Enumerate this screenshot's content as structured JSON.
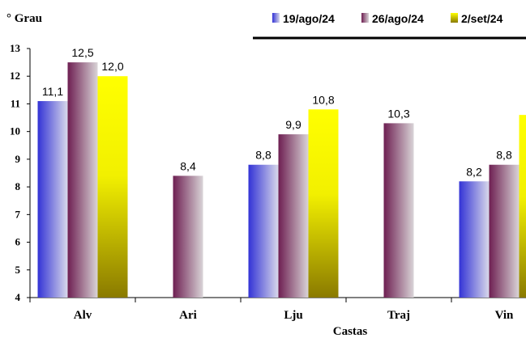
{
  "chart_data": {
    "type": "bar",
    "ylabel": "° Grau",
    "xlabel": "Castas",
    "ylim": [
      4,
      13
    ],
    "yticks": [
      4,
      5,
      6,
      7,
      8,
      9,
      10,
      11,
      12,
      13
    ],
    "categories": [
      "Alv",
      "Ari",
      "Lju",
      "Traj",
      "Vin"
    ],
    "legend_position": "top-right",
    "grid": false,
    "series": [
      {
        "name": "19/ago/24",
        "values": [
          11.1,
          null,
          8.8,
          null,
          8.2
        ],
        "labels": [
          "11,1",
          "",
          "8,8",
          "",
          "8,2"
        ],
        "color_top": "#3a3ad8",
        "color_bottom": "#d8d8e8"
      },
      {
        "name": "26/ago/24",
        "values": [
          12.5,
          8.4,
          9.9,
          10.3,
          8.8
        ],
        "labels": [
          "12,5",
          "8,4",
          "9,9",
          "10,3",
          "8,8"
        ],
        "color_top": "#7a2a5a",
        "color_bottom": "#dad5d8"
      },
      {
        "name": "2/set/24",
        "values": [
          12.0,
          null,
          10.8,
          null,
          10.6
        ],
        "labels": [
          "12,0",
          "",
          "10,8",
          "",
          ""
        ],
        "color_top": "#ffff00",
        "color_bottom": "#8a7a00"
      }
    ]
  }
}
